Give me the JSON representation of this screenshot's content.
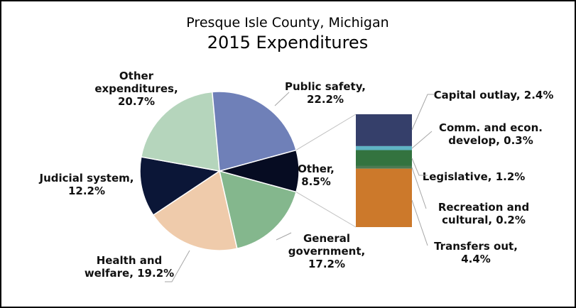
{
  "chart_data": {
    "type": "pie-of-bar",
    "title": "Presque Isle County, Michigan",
    "subtitle": "2015 Expenditures",
    "pie": [
      {
        "name": "Other",
        "value": 8.5,
        "label_lines": [
          "Other,",
          "8.5%"
        ],
        "color": "#060c22"
      },
      {
        "name": "General government",
        "value": 17.2,
        "label_lines": [
          "General",
          "government,",
          "17.2%"
        ],
        "color": "#84b78d"
      },
      {
        "name": "Health and welfare",
        "value": 19.2,
        "label_lines": [
          "Health and",
          "welfare, 19.2%"
        ],
        "color": "#efcbab"
      },
      {
        "name": "Judicial system",
        "value": 12.2,
        "label_lines": [
          "Judicial system,",
          "12.2%"
        ],
        "color": "#0b1637"
      },
      {
        "name": "Other expenditures",
        "value": 20.7,
        "label_lines": [
          "Other",
          "expenditures,",
          "20.7%"
        ],
        "color": "#b5d5bc"
      },
      {
        "name": "Public safety",
        "value": 22.2,
        "label_lines": [
          "Public safety,",
          "22.2%"
        ],
        "color": "#6f80b8"
      }
    ],
    "bar": [
      {
        "name": "Capital outlay",
        "value": 2.4,
        "label_lines": [
          "Capital outlay, 2.4%"
        ],
        "color": "#353f6a"
      },
      {
        "name": "Comm. and econ. develop",
        "value": 0.3,
        "label_lines": [
          "Comm. and econ.",
          "develop, 0.3%"
        ],
        "color": "#5fb3c4"
      },
      {
        "name": "Legislative",
        "value": 1.2,
        "label_lines": [
          "Legislative, 1.2%"
        ],
        "color": "#33733f"
      },
      {
        "name": "Recreation and cultural",
        "value": 0.2,
        "label_lines": [
          "Recreation and",
          "cultural, 0.2%"
        ],
        "color": "#4d7a52"
      },
      {
        "name": "Transfers out",
        "value": 4.4,
        "label_lines": [
          "Transfers out,",
          "4.4%"
        ],
        "color": "#cc792b"
      }
    ]
  }
}
